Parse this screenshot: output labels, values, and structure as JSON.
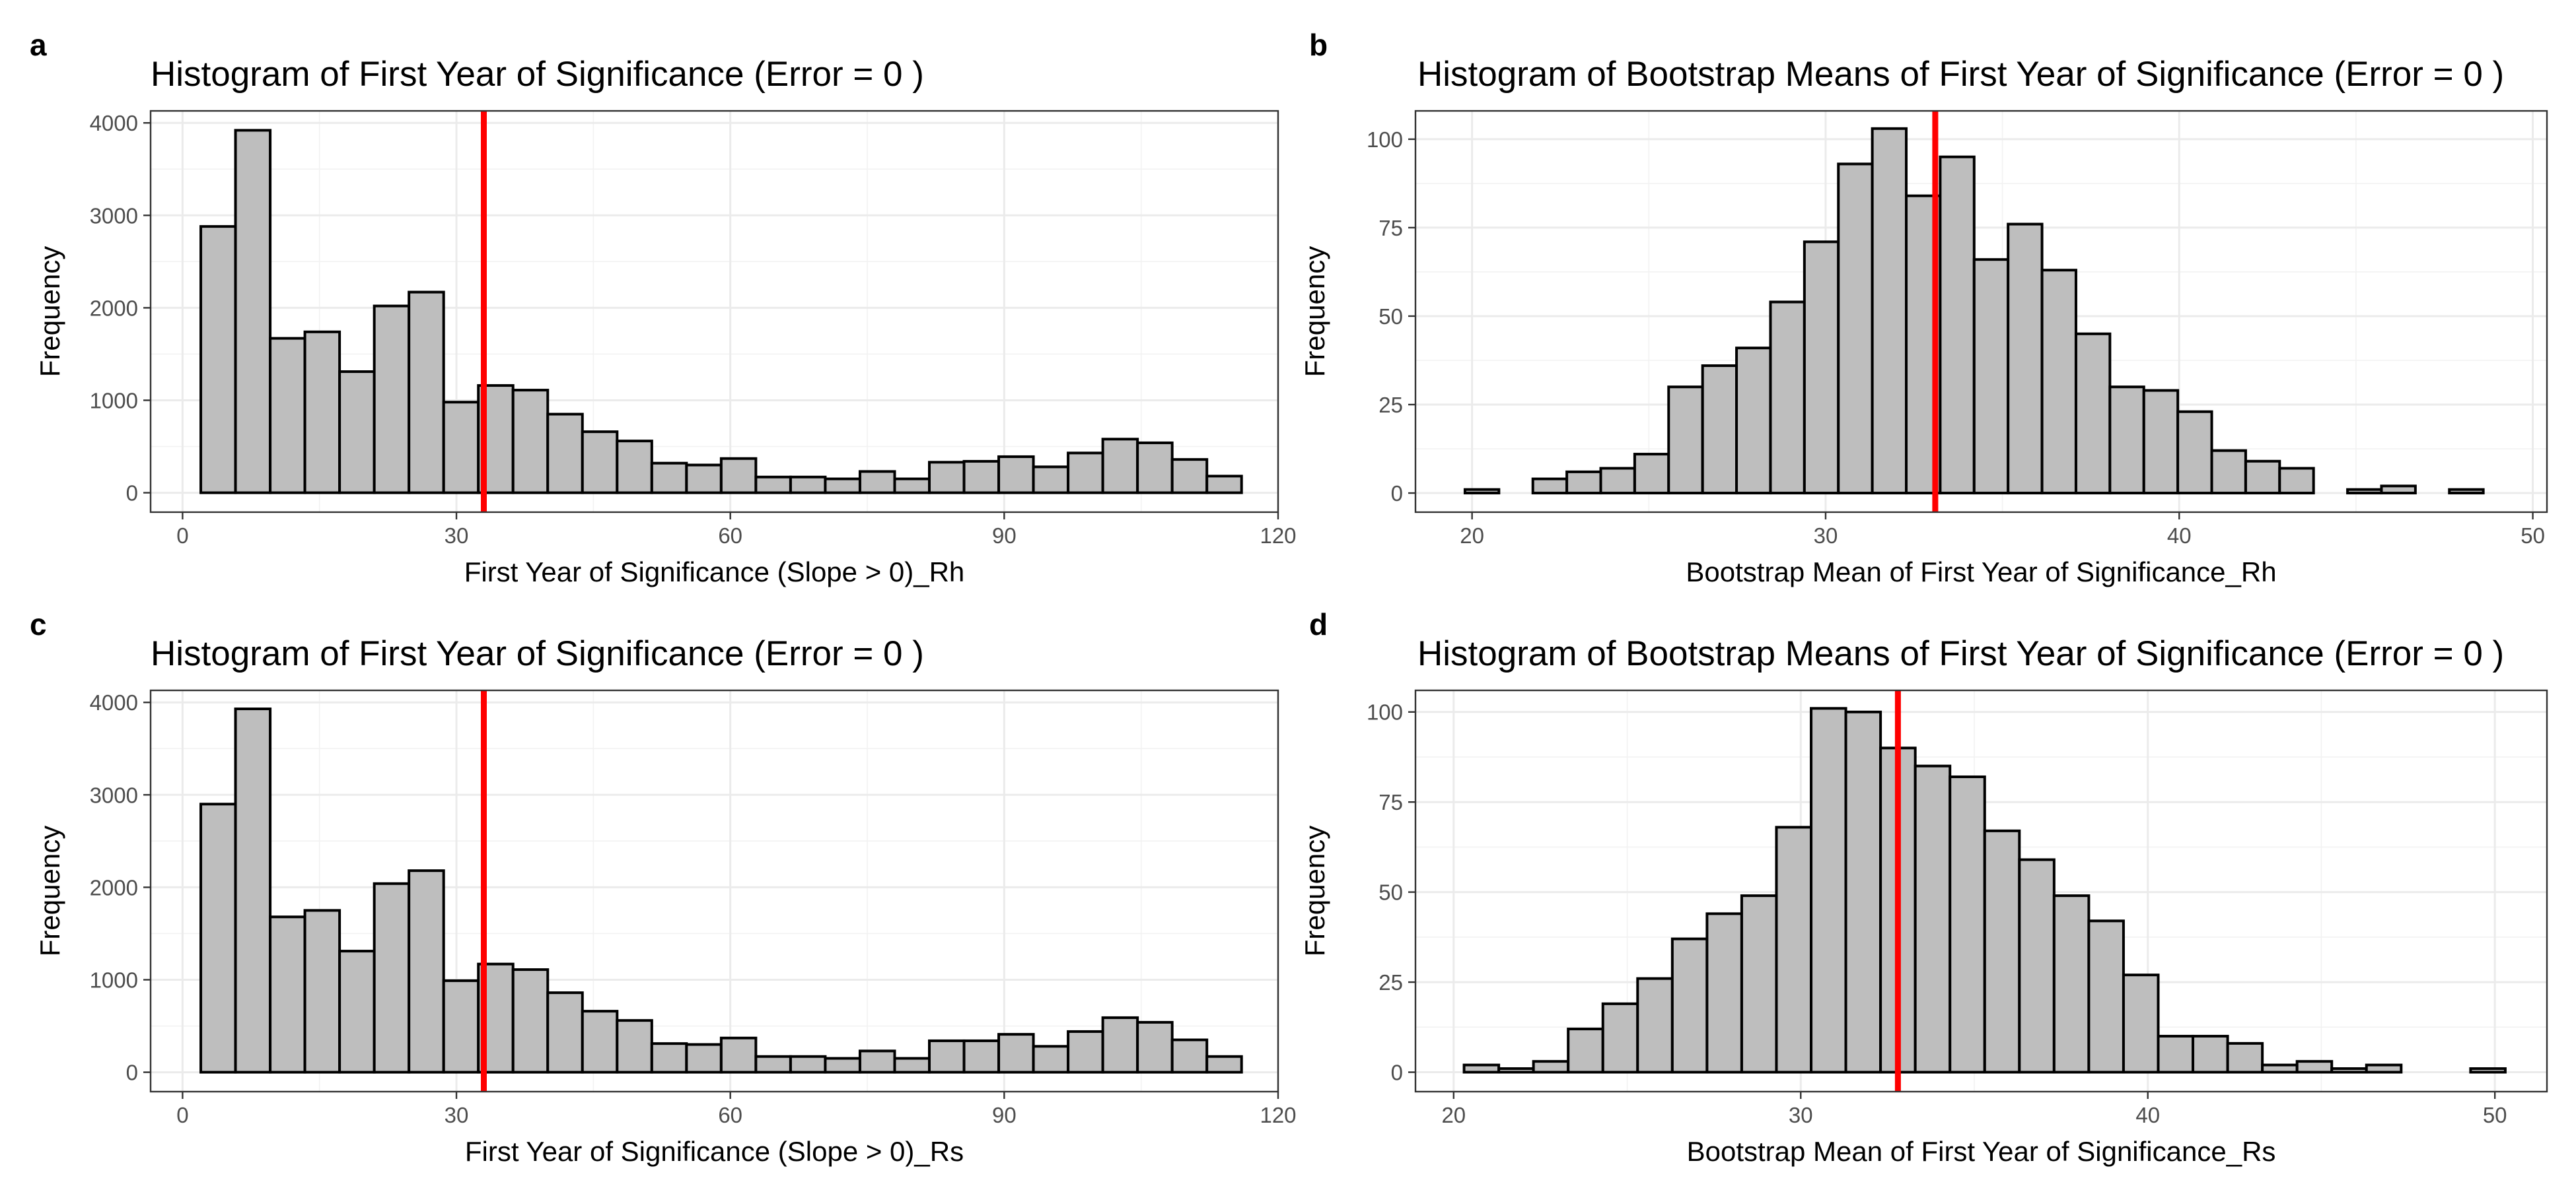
{
  "colors": {
    "bar_fill": "#bebebe",
    "bar_stroke": "#000000",
    "reference_line": "#ff0000",
    "panel_background": "#ffffff",
    "grid": "#ebebeb"
  },
  "chart_data": [
    {
      "panel_label": "a",
      "type": "bar",
      "subtype": "histogram",
      "title": "Histogram of First Year of Significance (Error = 0 )",
      "xlabel": "First Year of Significance (Slope > 0)_Rh",
      "ylabel": "Frequency",
      "xlim": [
        -3.5,
        120
      ],
      "ylim": [
        -210,
        4130
      ],
      "x_ticks": [
        0,
        30,
        60,
        90,
        120
      ],
      "y_ticks": [
        0,
        1000,
        2000,
        3000,
        4000
      ],
      "grid": true,
      "bin_width": 3.8,
      "bin_start": 2,
      "values": [
        2880,
        3920,
        1670,
        1740,
        1310,
        2020,
        2170,
        980,
        1160,
        1110,
        850,
        660,
        560,
        320,
        300,
        370,
        170,
        170,
        150,
        230,
        150,
        330,
        340,
        390,
        280,
        430,
        580,
        540,
        360,
        180
      ],
      "reference_line_x": 33
    },
    {
      "panel_label": "b",
      "type": "bar",
      "subtype": "histogram",
      "title": "Histogram of Bootstrap Means of First Year of Significance (Error = 0 )",
      "xlabel": "Bootstrap Mean of First Year of Significance_Rh",
      "ylabel": "Frequency",
      "xlim": [
        18.4,
        50.4
      ],
      "ylim": [
        -5.4,
        108
      ],
      "x_ticks": [
        20,
        30,
        40,
        50
      ],
      "y_ticks": [
        0,
        25,
        50,
        75,
        100
      ],
      "grid": true,
      "bin_width": 0.96,
      "bin_start": 19.8,
      "values": [
        1,
        0,
        4,
        6,
        7,
        11,
        30,
        36,
        41,
        54,
        71,
        93,
        103,
        84,
        95,
        66,
        76,
        63,
        45,
        30,
        29,
        23,
        12,
        9,
        7,
        0,
        1,
        2,
        0,
        1
      ],
      "reference_line_x": 33.1
    },
    {
      "panel_label": "c",
      "type": "bar",
      "subtype": "histogram",
      "title": "Histogram of First Year of Significance (Error = 0 )",
      "xlabel": "First Year of Significance (Slope > 0)_Rs",
      "ylabel": "Frequency",
      "xlim": [
        -3.5,
        120
      ],
      "ylim": [
        -210,
        4130
      ],
      "x_ticks": [
        0,
        30,
        60,
        90,
        120
      ],
      "y_ticks": [
        0,
        1000,
        2000,
        3000,
        4000
      ],
      "grid": true,
      "bin_width": 3.8,
      "bin_start": 2,
      "values": [
        2900,
        3930,
        1680,
        1750,
        1310,
        2040,
        2180,
        990,
        1170,
        1110,
        860,
        660,
        560,
        310,
        300,
        370,
        170,
        170,
        150,
        230,
        150,
        340,
        340,
        410,
        280,
        440,
        590,
        540,
        350,
        170
      ],
      "reference_line_x": 33
    },
    {
      "panel_label": "d",
      "type": "bar",
      "subtype": "histogram",
      "title": "Histogram of Bootstrap Means of First Year of Significance (Error = 0 )",
      "xlabel": "Bootstrap Mean of First Year of Significance_Rs",
      "ylabel": "Frequency",
      "xlim": [
        18.9,
        51.5
      ],
      "ylim": [
        -5.4,
        106
      ],
      "x_ticks": [
        20,
        30,
        40,
        50
      ],
      "y_ticks": [
        0,
        25,
        50,
        75,
        100
      ],
      "grid": true,
      "bin_width": 1.0,
      "bin_start": 20.3,
      "values": [
        2,
        1,
        3,
        12,
        19,
        26,
        37,
        44,
        49,
        68,
        101,
        100,
        90,
        85,
        82,
        67,
        59,
        49,
        42,
        27,
        10,
        10,
        8,
        2,
        3,
        1,
        2,
        0,
        0,
        1
      ],
      "reference_line_x": 32.8
    }
  ]
}
